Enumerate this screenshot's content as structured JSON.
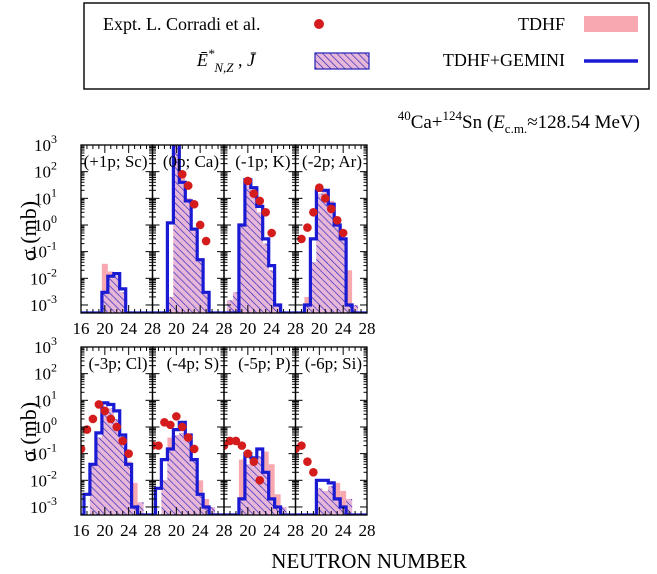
{
  "figure": {
    "reaction_html_parts": [
      "40",
      "Ca+",
      "124",
      "Sn (",
      "E",
      "c.m.",
      "≈128.54 MeV)"
    ],
    "y_axis_label": "σ (mb)",
    "x_axis_label": "NEUTRON NUMBER",
    "colors": {
      "expt": "#d41c1c",
      "tdhf_fill": "#f7a8b0",
      "gemini_line": "#1a1ad2",
      "hatch": "#2222b8",
      "hatch_bg": "#e7b6d8"
    }
  },
  "legend": {
    "expt_label": "Expt. L. Corradi et al.",
    "tdhf_label": "TDHF",
    "hatch_label": "Ē*N,Z , J̄",
    "gemini_label": "TDHF+GEMINI"
  },
  "chart_data": {
    "type": "bar",
    "xlim": [
      16,
      28
    ],
    "ylim_log": [
      0.0005,
      1000
    ],
    "x_ticks": [
      16,
      20,
      24,
      28
    ],
    "y_tick_labels": [
      "10^-3",
      "10^-2",
      "10^-1",
      "10^0",
      "10^1",
      "10^2",
      "10^3"
    ],
    "series_names": [
      "Expt. L. Corradi et al.",
      "TDHF",
      "TDHF+GEMINI"
    ],
    "panels": [
      {
        "label": "(+1p; Sc)",
        "tdhf": [
          [
            20,
            0.035
          ],
          [
            21,
            0.018
          ],
          [
            22,
            0.012
          ],
          [
            23,
            0.003
          ]
        ],
        "gemini": [
          [
            20,
            0.003
          ],
          [
            21,
            0.012
          ],
          [
            22,
            0.015
          ],
          [
            23,
            0.004
          ]
        ],
        "expt": []
      },
      {
        "label": "(0p; Ca)",
        "tdhf": [
          [
            19,
            0.002
          ],
          [
            20,
            2000
          ],
          [
            21,
            80
          ],
          [
            22,
            10
          ],
          [
            23,
            0.6
          ],
          [
            24,
            0.05
          ],
          [
            25,
            0.003
          ]
        ],
        "gemini": [
          [
            19,
            1.2
          ],
          [
            20,
            1500
          ],
          [
            21,
            40
          ],
          [
            22,
            8
          ],
          [
            23,
            0.7
          ],
          [
            24,
            0.05
          ],
          [
            25,
            0.003
          ]
        ],
        "expt": [
          [
            21,
            80
          ],
          [
            22,
            30
          ],
          [
            23,
            6
          ],
          [
            24,
            1
          ],
          [
            25,
            0.25
          ]
        ]
      },
      {
        "label": "(-1p; K)",
        "tdhf": [
          [
            17,
            0.0015
          ],
          [
            18,
            0.003
          ],
          [
            19,
            1
          ],
          [
            20,
            30
          ],
          [
            21,
            15
          ],
          [
            22,
            3
          ],
          [
            23,
            0.2
          ],
          [
            24,
            0.02
          ],
          [
            25,
            0.001
          ]
        ],
        "gemini": [
          [
            19,
            1
          ],
          [
            20,
            50
          ],
          [
            21,
            25
          ],
          [
            22,
            5
          ],
          [
            23,
            0.3
          ],
          [
            24,
            0.03
          ],
          [
            25,
            0.001
          ]
        ],
        "expt": [
          [
            20,
            45
          ],
          [
            21,
            15
          ],
          [
            22,
            8
          ],
          [
            23,
            3
          ],
          [
            24,
            0.5
          ]
        ]
      },
      {
        "label": "(-2p; Ar)",
        "tdhf": [
          [
            18,
            0.002
          ],
          [
            19,
            0.04
          ],
          [
            20,
            15
          ],
          [
            21,
            20
          ],
          [
            22,
            8
          ],
          [
            23,
            1.5
          ],
          [
            24,
            0.3
          ],
          [
            25,
            0.02
          ],
          [
            26,
            0.001
          ]
        ],
        "gemini": [
          [
            18,
            0.001
          ],
          [
            19,
            0.3
          ],
          [
            20,
            20
          ],
          [
            21,
            20
          ],
          [
            22,
            6
          ],
          [
            23,
            1
          ],
          [
            24,
            0.3
          ],
          [
            25,
            0.001
          ]
        ],
        "expt": [
          [
            17,
            0.3
          ],
          [
            18,
            0.8
          ],
          [
            19,
            3
          ],
          [
            20,
            25
          ],
          [
            21,
            10
          ],
          [
            22,
            4
          ],
          [
            23,
            1.5
          ],
          [
            24,
            0.5
          ]
        ]
      },
      {
        "label": "(-3p; Cl)",
        "tdhf": [
          [
            18,
            0.04
          ],
          [
            19,
            0.4
          ],
          [
            20,
            6
          ],
          [
            21,
            5
          ],
          [
            22,
            2
          ],
          [
            23,
            0.4
          ],
          [
            24,
            0.05
          ],
          [
            25,
            0.008
          ],
          [
            26,
            0.0015
          ]
        ],
        "gemini": [
          [
            17,
            0.003
          ],
          [
            18,
            0.04
          ],
          [
            19,
            0.6
          ],
          [
            20,
            8
          ],
          [
            21,
            7
          ],
          [
            22,
            4
          ],
          [
            23,
            0.5
          ],
          [
            24,
            0.04
          ],
          [
            25,
            0.001
          ]
        ],
        "expt": [
          [
            16,
            0.15
          ],
          [
            17,
            0.8
          ],
          [
            18,
            2
          ],
          [
            19,
            7
          ],
          [
            20,
            4
          ],
          [
            21,
            2
          ],
          [
            22,
            1
          ],
          [
            23,
            0.3
          ],
          [
            24,
            0.1
          ]
        ]
      },
      {
        "label": "(-4p; S)",
        "tdhf": [
          [
            18,
            0.01
          ],
          [
            19,
            0.4
          ],
          [
            20,
            0.5
          ],
          [
            21,
            0.6
          ],
          [
            22,
            0.4
          ],
          [
            23,
            0.06
          ],
          [
            24,
            0.01
          ],
          [
            25,
            0.002
          ],
          [
            26,
            0.001
          ]
        ],
        "gemini": [
          [
            17,
            0.005
          ],
          [
            18,
            0.06
          ],
          [
            19,
            0.15
          ],
          [
            20,
            0.8
          ],
          [
            21,
            1.5
          ],
          [
            22,
            0.5
          ],
          [
            23,
            0.06
          ],
          [
            24,
            0.003
          ],
          [
            25,
            0.001
          ]
        ],
        "expt": [
          [
            16,
            0.2
          ],
          [
            17,
            0.2
          ],
          [
            18,
            1.5
          ],
          [
            19,
            1.2
          ],
          [
            20,
            2.5
          ],
          [
            21,
            1
          ],
          [
            22,
            0.4
          ],
          [
            23,
            0.15
          ]
        ]
      },
      {
        "label": "(-5p; P)",
        "tdhf": [
          [
            19,
            0.06
          ],
          [
            20,
            0.04
          ],
          [
            21,
            0.05
          ],
          [
            22,
            0.08
          ],
          [
            23,
            0.12
          ],
          [
            24,
            0.04
          ],
          [
            25,
            0.003
          ],
          [
            26,
            0.001
          ]
        ],
        "gemini": [
          [
            19,
            0.002
          ],
          [
            20,
            0.1
          ],
          [
            21,
            0.07
          ],
          [
            22,
            0.15
          ],
          [
            23,
            0.02
          ],
          [
            24,
            0.002
          ],
          [
            25,
            0.001
          ]
        ],
        "expt": [
          [
            16,
            0.2
          ],
          [
            17,
            0.3
          ],
          [
            18,
            0.3
          ],
          [
            19,
            0.2
          ],
          [
            20,
            0.1
          ],
          [
            21,
            0.05
          ],
          [
            22,
            0.01
          ]
        ]
      },
      {
        "label": "(-6p; Si)",
        "tdhf": [
          [
            20,
            0.005
          ],
          [
            21,
            0.004
          ],
          [
            22,
            0.006
          ],
          [
            23,
            0.008
          ],
          [
            24,
            0.004
          ],
          [
            25,
            0.002
          ]
        ],
        "gemini": [
          [
            20,
            0.01
          ],
          [
            21,
            0.01
          ],
          [
            22,
            0.008
          ],
          [
            23,
            0.002
          ],
          [
            24,
            0.001
          ]
        ],
        "expt": [
          [
            16,
            0.15
          ],
          [
            17,
            0.2
          ],
          [
            18,
            0.05
          ],
          [
            19,
            0.02
          ]
        ]
      }
    ]
  }
}
